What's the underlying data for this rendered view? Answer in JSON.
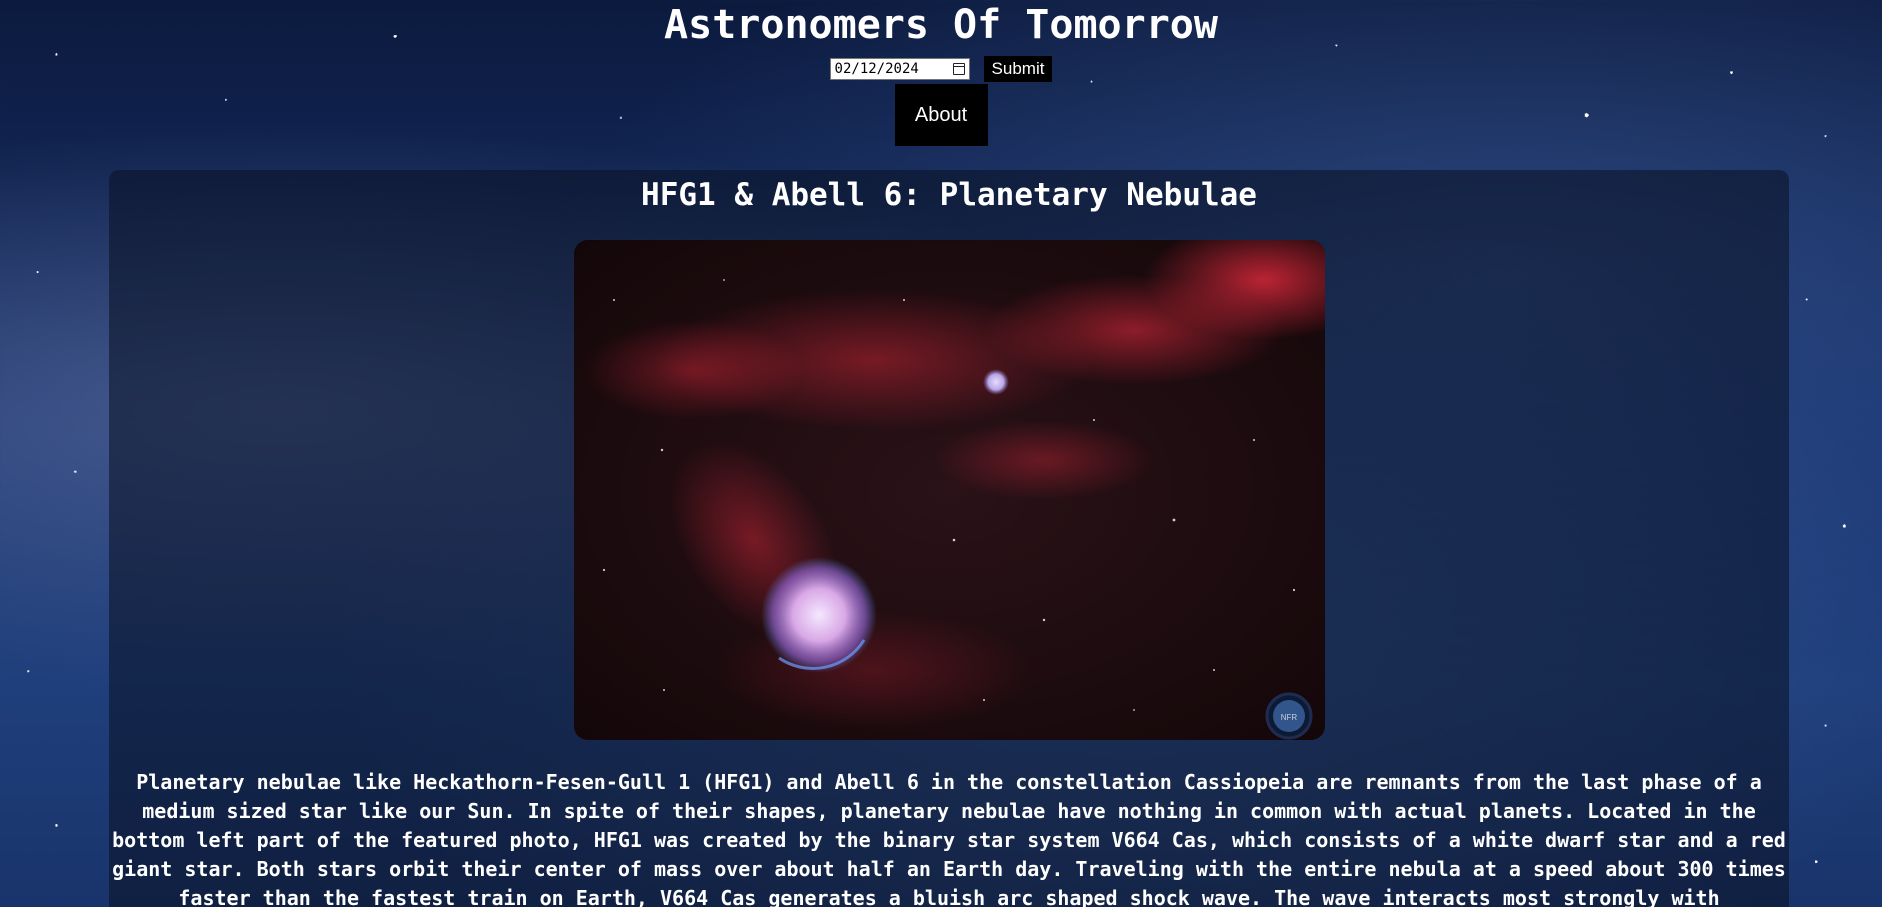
{
  "header": {
    "site_title": "Astronomers Of Tomorrow",
    "date_value": "02/12/2024",
    "submit_label": "Submit",
    "about_label": "About"
  },
  "apod": {
    "title": "HFG1 & Abell 6: Planetary Nebulae",
    "image_watermark": "NFR",
    "explanation": "Planetary nebulae like Heckathorn-Fesen-Gull 1 (HFG1) and Abell 6 in the constellation Cassiopeia are remnants from the last phase of a medium sized star like our Sun. In spite of their shapes, planetary nebulae have nothing in common with actual planets. Located in the bottom left part of the featured photo, HFG1 was created by the binary star system V664 Cas, which consists of a white dwarf star and a red giant star. Both stars orbit their center of mass over about half an Earth day. Traveling with the entire nebula at a speed about 300 times faster than the fastest train on Earth, V664 Cas generates a bluish arc shaped shock wave. The wave interacts most strongly with"
  },
  "colors": {
    "button_bg": "#000000",
    "text": "#ffffff",
    "nebula_red": "#c8283a",
    "nebula_violet": "#b9a6e6"
  },
  "icons": {
    "date_picker": "calendar-icon"
  }
}
